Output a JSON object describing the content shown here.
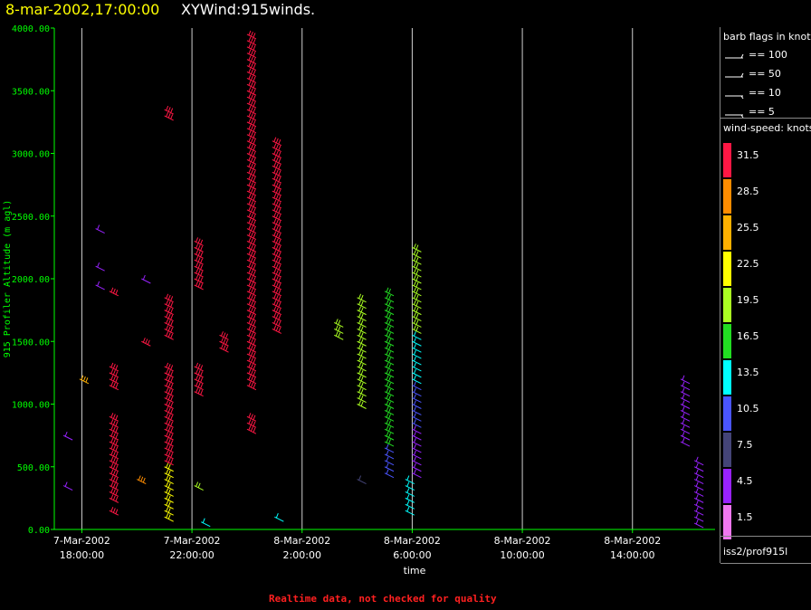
{
  "header": {
    "date": "8-mar-2002,17:00:00",
    "name": "XYWind:915winds."
  },
  "footer": {
    "note": "Realtime data, not checked for quality"
  },
  "legend": {
    "flags_title": "barb flags in knots",
    "flags": [
      {
        "label": "== 100",
        "knots": 100
      },
      {
        "label": "== 50",
        "knots": 50
      },
      {
        "label": "== 10",
        "knots": 10
      },
      {
        "label": "== 5",
        "knots": 5
      }
    ],
    "speed_title": "wind-speed: knots",
    "speed_scale": [
      {
        "label": "31.5",
        "color": "#ff1744"
      },
      {
        "label": "28.5",
        "color": "#ff8c00"
      },
      {
        "label": "25.5",
        "color": "#ffb000"
      },
      {
        "label": "22.5",
        "color": "#ffff00"
      },
      {
        "label": "19.5",
        "color": "#aaff22"
      },
      {
        "label": "16.5",
        "color": "#22dd22"
      },
      {
        "label": "13.5",
        "color": "#00ffff"
      },
      {
        "label": "10.5",
        "color": "#4a55ff"
      },
      {
        "label": "7.5",
        "color": "#444477"
      },
      {
        "label": "4.5",
        "color": "#9922ff"
      },
      {
        "label": "1.5",
        "color": "#ee77ee"
      }
    ],
    "source": "iss2/prof915l"
  },
  "chart_data": {
    "type": "scatter",
    "mark": "wind-barb",
    "xlabel": "time",
    "ylabel": "915 Profiler Altitude (m agl)",
    "ylim": [
      0,
      4000
    ],
    "xlim": [
      "2002-03-07T17:00",
      "2002-03-08T17:00"
    ],
    "yticks": [
      "0.00",
      "500.00",
      "1000.00",
      "1500.00",
      "2000.00",
      "2500.00",
      "3000.00",
      "3500.00",
      "4000.00"
    ],
    "xticks": [
      {
        "date": "7-Mar-2002",
        "time": "18:00:00",
        "value": "2002-03-07T18:00"
      },
      {
        "date": "7-Mar-2002",
        "time": "22:00:00",
        "value": "2002-03-07T22:00"
      },
      {
        "date": "8-Mar-2002",
        "time": "2:00:00",
        "value": "2002-03-08T02:00"
      },
      {
        "date": "8-Mar-2002",
        "time": "6:00:00",
        "value": "2002-03-08T06:00"
      },
      {
        "date": "8-Mar-2002",
        "time": "10:00:00",
        "value": "2002-03-08T10:00"
      },
      {
        "date": "8-Mar-2002",
        "time": "14:00:00",
        "value": "2002-03-08T14:00"
      }
    ],
    "grid": "vertical",
    "profiles": [
      {
        "time": "2002-03-07T17:20",
        "speed": 5,
        "heights": [
          350,
          750
        ]
      },
      {
        "time": "2002-03-07T17:55",
        "speed": 25,
        "heights": [
          1200
        ]
      },
      {
        "time": "2002-03-07T18:30",
        "speed": 5,
        "heights": [
          1950,
          2100,
          2400
        ]
      },
      {
        "time": "2002-03-07T19:00",
        "speed": 31,
        "heights": [
          150,
          250,
          300,
          350,
          400,
          450,
          500,
          550,
          600,
          650,
          700,
          750,
          800,
          850,
          900,
          1150,
          1200,
          1250,
          1300,
          1900
        ]
      },
      {
        "time": "2002-03-07T20:00",
        "speed": 27,
        "heights": [
          400
        ]
      },
      {
        "time": "2002-03-07T20:10",
        "speed": 5,
        "heights": [
          2000
        ]
      },
      {
        "time": "2002-03-07T20:10",
        "speed": 31,
        "heights": [
          1500
        ]
      },
      {
        "time": "2002-03-07T21:00",
        "speed": 22,
        "heights": [
          100,
          150,
          200,
          250,
          300,
          350,
          400,
          450,
          500
        ]
      },
      {
        "time": "2002-03-07T21:00",
        "speed": 31,
        "heights": [
          550,
          600,
          650,
          700,
          750,
          800,
          850,
          900,
          950,
          1000,
          1050,
          1100,
          1150,
          1200,
          1250,
          1300,
          1550,
          1600,
          1650,
          1700,
          1750,
          1800,
          1850,
          3300,
          3350
        ]
      },
      {
        "time": "2002-03-07T22:05",
        "speed": 18,
        "heights": [
          350
        ]
      },
      {
        "time": "2002-03-07T22:05",
        "speed": 31,
        "heights": [
          1100,
          1150,
          1200,
          1250,
          1300,
          1950,
          2000,
          2050,
          2100,
          2150,
          2200,
          2250,
          2300
        ]
      },
      {
        "time": "2002-03-07T22:20",
        "speed": 13,
        "heights": [
          60
        ]
      },
      {
        "time": "2002-03-07T23:00",
        "speed": 31,
        "heights": [
          1450,
          1500,
          1550
        ]
      },
      {
        "time": "2002-03-08T00:00",
        "speed": 31,
        "heights": [
          800,
          850,
          900,
          1150,
          1200,
          1250,
          1300,
          1350,
          1400,
          1450,
          1500,
          1550,
          1600,
          1650,
          1700,
          1750,
          1800,
          1850,
          1900,
          1950,
          2000,
          2050,
          2100,
          2150,
          2200,
          2250,
          2300,
          2350,
          2400,
          2450,
          2500,
          2550,
          2600,
          2650,
          2700,
          2750,
          2800,
          2850,
          2900,
          2950,
          3000,
          3050,
          3100,
          3150,
          3200,
          3250,
          3300,
          3350,
          3400,
          3450,
          3500,
          3550,
          3600,
          3650,
          3700,
          3750,
          3800,
          3850,
          3900,
          3950
        ]
      },
      {
        "time": "2002-03-08T00:55",
        "speed": 31,
        "heights": [
          1600,
          1650,
          1700,
          1750,
          1800,
          1850,
          1900,
          1950,
          2000,
          2050,
          2100,
          2150,
          2200,
          2250,
          2300,
          2350,
          2400,
          2450,
          2500,
          2550,
          2600,
          2650,
          2700,
          2750,
          2800,
          2850,
          2900,
          2950,
          3000,
          3050,
          3100
        ]
      },
      {
        "time": "2002-03-08T01:00",
        "speed": 13,
        "heights": [
          100
        ]
      },
      {
        "time": "2002-03-08T03:10",
        "speed": 18,
        "heights": [
          1550,
          1600,
          1650
        ]
      },
      {
        "time": "2002-03-08T04:00",
        "speed": 7,
        "heights": [
          400
        ]
      },
      {
        "time": "2002-03-08T04:00",
        "speed": 18,
        "heights": [
          1000,
          1050,
          1100,
          1150,
          1200,
          1250,
          1300,
          1350,
          1400,
          1450,
          1500,
          1550,
          1600,
          1650,
          1700,
          1750,
          1800,
          1850
        ]
      },
      {
        "time": "2002-03-08T05:00",
        "speed": 9,
        "heights": [
          450,
          500,
          550,
          600,
          650
        ]
      },
      {
        "time": "2002-03-08T05:00",
        "speed": 17,
        "heights": [
          700,
          750,
          800,
          850,
          900,
          950,
          1000,
          1050,
          1100,
          1150,
          1200,
          1250,
          1300,
          1350,
          1400,
          1450,
          1500,
          1550,
          1600,
          1650,
          1700,
          1750,
          1800,
          1850,
          1900
        ]
      },
      {
        "time": "2002-03-08T05:45",
        "speed": 13,
        "heights": [
          150,
          200,
          250,
          300,
          350,
          400
        ]
      },
      {
        "time": "2002-03-08T06:00",
        "speed": 5,
        "heights": [
          450,
          500,
          550,
          600,
          650,
          700,
          750,
          800
        ]
      },
      {
        "time": "2002-03-08T06:00",
        "speed": 11,
        "heights": [
          850,
          900,
          950,
          1000,
          1050,
          1100,
          1150
        ]
      },
      {
        "time": "2002-03-08T06:00",
        "speed": 14,
        "heights": [
          1200,
          1250,
          1300,
          1350,
          1400,
          1450,
          1500,
          1550
        ]
      },
      {
        "time": "2002-03-08T06:00",
        "speed": 18,
        "heights": [
          1600,
          1650,
          1700,
          1750,
          1800,
          1850,
          1900,
          1950,
          2000,
          2050,
          2100,
          2150,
          2200,
          2250
        ]
      },
      {
        "time": "2002-03-08T15:45",
        "speed": 5,
        "heights": [
          700,
          750,
          800,
          850,
          900,
          950,
          1000,
          1050,
          1100,
          1150,
          1200
        ]
      },
      {
        "time": "2002-03-08T16:15",
        "speed": 5,
        "heights": [
          50,
          100,
          150,
          200,
          250,
          300,
          350,
          400,
          450,
          500,
          550
        ]
      }
    ]
  }
}
